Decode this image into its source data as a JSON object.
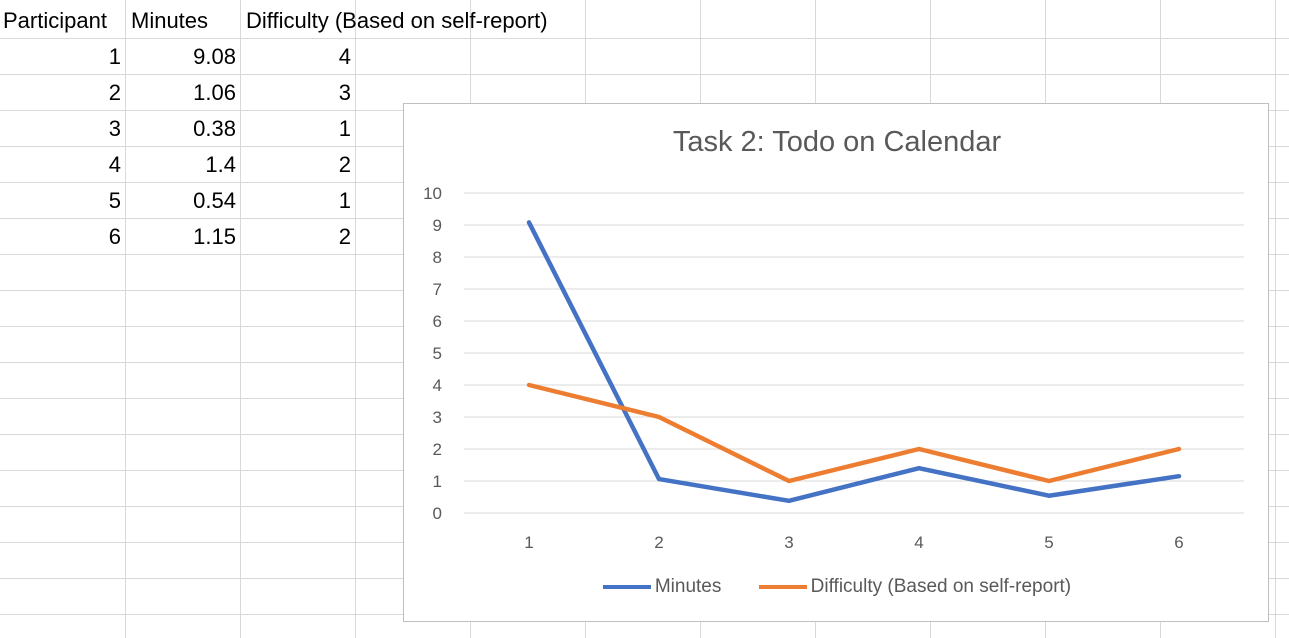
{
  "table": {
    "headers": [
      "Participant",
      "Minutes",
      "Difficulty (Based on self-report)"
    ],
    "rows": [
      [
        "1",
        "9.08",
        "4"
      ],
      [
        "2",
        "1.06",
        "3"
      ],
      [
        "3",
        "0.38",
        "1"
      ],
      [
        "4",
        "1.4",
        "2"
      ],
      [
        "5",
        "0.54",
        "1"
      ],
      [
        "6",
        "1.15",
        "2"
      ]
    ]
  },
  "chart_data": {
    "type": "line",
    "title": "Task 2: Todo on Calendar",
    "x": [
      1,
      2,
      3,
      4,
      5,
      6
    ],
    "series": [
      {
        "name": "Minutes",
        "values": [
          9.08,
          1.06,
          0.38,
          1.4,
          0.54,
          1.15
        ],
        "color": "#4472c4"
      },
      {
        "name": "Difficulty (Based on self-report)",
        "values": [
          4,
          3,
          1,
          2,
          1,
          2
        ],
        "color": "#ed7d31"
      }
    ],
    "ylim": [
      0,
      10
    ],
    "yticks": [
      0,
      1,
      2,
      3,
      4,
      5,
      6,
      7,
      8,
      9,
      10
    ],
    "grid": true,
    "legend": "bottom"
  }
}
